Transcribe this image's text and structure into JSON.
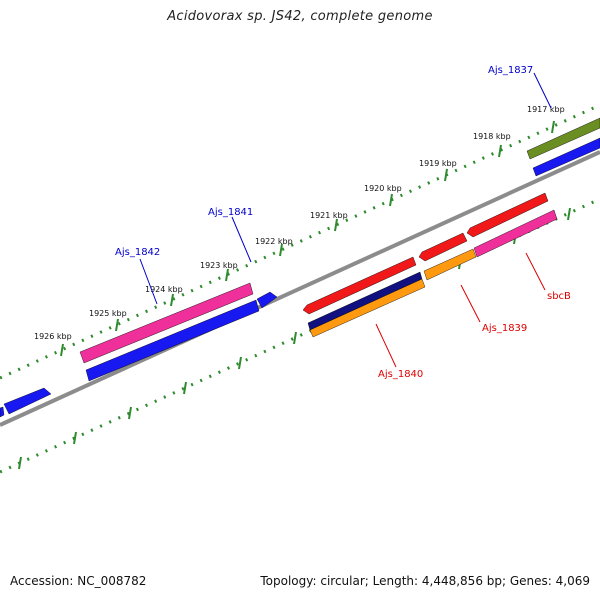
{
  "title": "Acidovorax sp. JS42, complete genome",
  "footer": {
    "accession": "Accession: NC_008782",
    "summary": "Topology: circular; Length: 4,448,856 bp; Genes: 4,069"
  },
  "colors": {
    "backbone": "#8c8c8c",
    "ticks": "#2e8b2e",
    "gene_label_forward": "#0000cc",
    "gene_label_reverse": "#dd0000",
    "blue": "#1818f0",
    "magenta": "#f0309a",
    "olive": "#6b8e23",
    "red": "#f01818",
    "orange": "#ff9a10",
    "navy": "#101080"
  },
  "kbp_labels": [
    "1917 kbp",
    "1918 kbp",
    "1919 kbp",
    "1920 kbp",
    "1921 kbp",
    "1922 kbp",
    "1923 kbp",
    "1924 kbp",
    "1925 kbp",
    "1926 kbp"
  ],
  "gene_labels": [
    {
      "text": "Ajs_1837",
      "strand": "forward"
    },
    {
      "text": "Ajs_1841",
      "strand": "forward"
    },
    {
      "text": "Ajs_1842",
      "strand": "forward"
    },
    {
      "text": "sbcB",
      "strand": "reverse"
    },
    {
      "text": "Ajs_1839",
      "strand": "reverse"
    },
    {
      "text": "Ajs_1840",
      "strand": "reverse"
    }
  ]
}
